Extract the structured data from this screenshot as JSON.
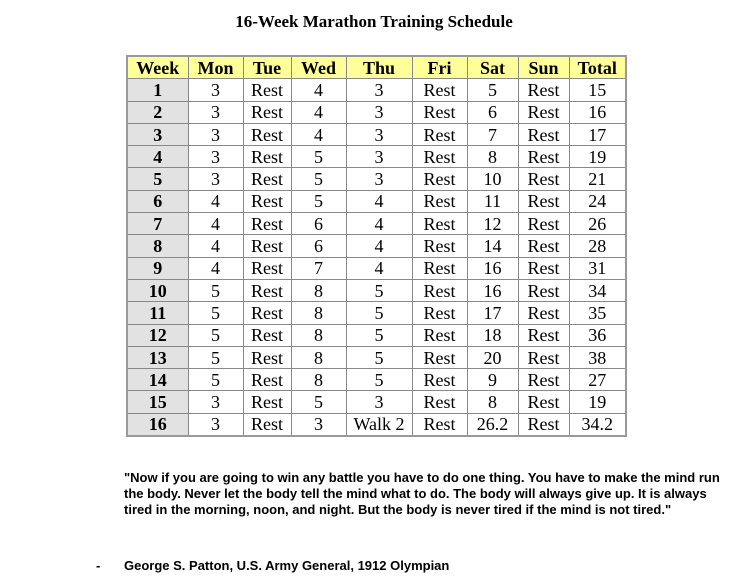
{
  "title": "16-Week Marathon Training Schedule",
  "columns": [
    "Week",
    "Mon",
    "Tue",
    "Wed",
    "Thu",
    "Fri",
    "Sat",
    "Sun",
    "Total"
  ],
  "rows": [
    [
      "1",
      "3",
      "Rest",
      "4",
      "3",
      "Rest",
      "5",
      "Rest",
      "15"
    ],
    [
      "2",
      "3",
      "Rest",
      "4",
      "3",
      "Rest",
      "6",
      "Rest",
      "16"
    ],
    [
      "3",
      "3",
      "Rest",
      "4",
      "3",
      "Rest",
      "7",
      "Rest",
      "17"
    ],
    [
      "4",
      "3",
      "Rest",
      "5",
      "3",
      "Rest",
      "8",
      "Rest",
      "19"
    ],
    [
      "5",
      "3",
      "Rest",
      "5",
      "3",
      "Rest",
      "10",
      "Rest",
      "21"
    ],
    [
      "6",
      "4",
      "Rest",
      "5",
      "4",
      "Rest",
      "11",
      "Rest",
      "24"
    ],
    [
      "7",
      "4",
      "Rest",
      "6",
      "4",
      "Rest",
      "12",
      "Rest",
      "26"
    ],
    [
      "8",
      "4",
      "Rest",
      "6",
      "4",
      "Rest",
      "14",
      "Rest",
      "28"
    ],
    [
      "9",
      "4",
      "Rest",
      "7",
      "4",
      "Rest",
      "16",
      "Rest",
      "31"
    ],
    [
      "10",
      "5",
      "Rest",
      "8",
      "5",
      "Rest",
      "16",
      "Rest",
      "34"
    ],
    [
      "11",
      "5",
      "Rest",
      "8",
      "5",
      "Rest",
      "17",
      "Rest",
      "35"
    ],
    [
      "12",
      "5",
      "Rest",
      "8",
      "5",
      "Rest",
      "18",
      "Rest",
      "36"
    ],
    [
      "13",
      "5",
      "Rest",
      "8",
      "5",
      "Rest",
      "20",
      "Rest",
      "38"
    ],
    [
      "14",
      "5",
      "Rest",
      "8",
      "5",
      "Rest",
      "9",
      "Rest",
      "27"
    ],
    [
      "15",
      "3",
      "Rest",
      "5",
      "3",
      "Rest",
      "8",
      "Rest",
      "19"
    ],
    [
      "16",
      "3",
      "Rest",
      "3",
      "Walk 2",
      "Rest",
      "26.2",
      "Rest",
      "34.2"
    ]
  ],
  "colors": {
    "header_bg": "#ffff99",
    "week_bg": "#e2e2e2"
  },
  "quote": "\"Now if you are going to win any battle you have to do one thing. You have to make the mind run the body. Never let the body tell the mind what to do. The body will always give up. It is always tired in the morning, noon, and night. But the body is never tired if the mind is not tired.\"",
  "attribution_dash": "-",
  "attribution": "George S. Patton, U.S. Army General, 1912 Olympian"
}
